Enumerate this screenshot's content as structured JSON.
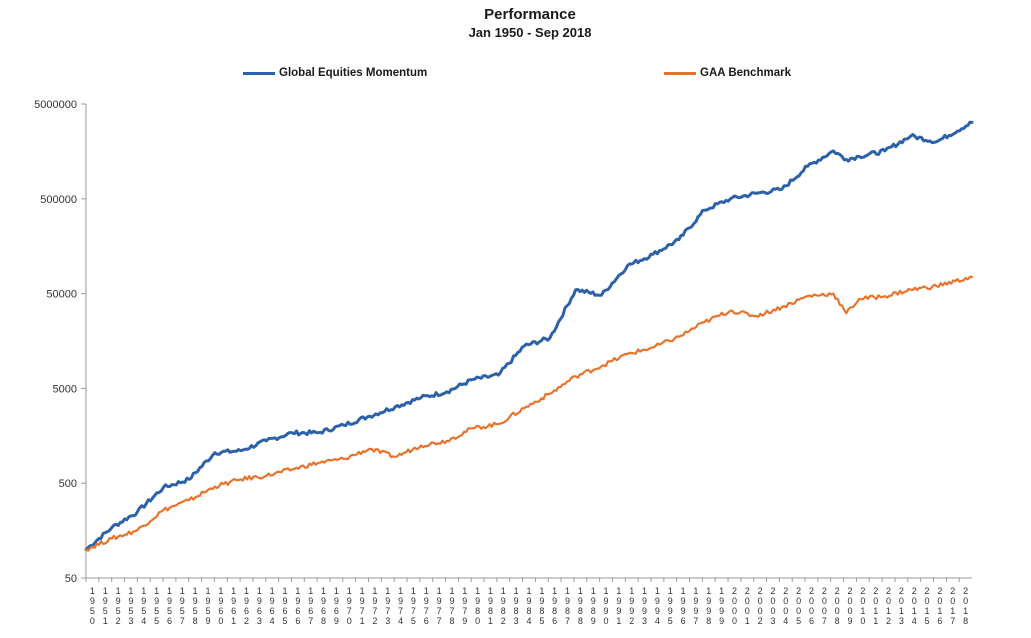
{
  "title": "Performance",
  "subtitle": "Jan 1950 - Sep 2018",
  "colors": {
    "series1": "#2d62a8",
    "series2": "#e8732a",
    "axis": "#9a9a9a"
  },
  "chart_data": {
    "type": "line",
    "title": "Performance",
    "subtitle": "Jan 1950 - Sep 2018",
    "y_scale": "log",
    "ylim": [
      50,
      5000000
    ],
    "y_ticks": [
      "50",
      "500",
      "5000",
      "50000",
      "500000",
      "5000000"
    ],
    "legend_position": "top",
    "grid": false,
    "x": [
      1950,
      1952,
      1954,
      1956,
      1958,
      1960,
      1962,
      1964,
      1966,
      1968,
      1970,
      1972,
      1974,
      1976,
      1978,
      1980,
      1982,
      1984,
      1986,
      1988,
      1990,
      1992,
      1994,
      1996,
      1998,
      2000,
      2002,
      2004,
      2006,
      2008,
      2009,
      2010,
      2012,
      2014,
      2016,
      2018.75
    ],
    "x_tick_years": [
      "1950",
      "1951",
      "1952",
      "1953",
      "1954",
      "1955",
      "1956",
      "1957",
      "1958",
      "1959",
      "1960",
      "1961",
      "1962",
      "1963",
      "1964",
      "1965",
      "1966",
      "1967",
      "1968",
      "1969",
      "1970",
      "1971",
      "1972",
      "1973",
      "1974",
      "1975",
      "1976",
      "1977",
      "1978",
      "1979",
      "1980",
      "1981",
      "1982",
      "1983",
      "1984",
      "1985",
      "1986",
      "1987",
      "1988",
      "1989",
      "1990",
      "1991",
      "1992",
      "1993",
      "1994",
      "1995",
      "1996",
      "1997",
      "1998",
      "1999",
      "2000",
      "2001",
      "2002",
      "2003",
      "2004",
      "2005",
      "2006",
      "2007",
      "2008",
      "2009",
      "2010",
      "2011",
      "2012",
      "2013",
      "2014",
      "2015",
      "2016",
      "2017",
      "2018"
    ],
    "series": [
      {
        "name": "Global Equities Momentum",
        "values": [
          100,
          170,
          250,
          450,
          550,
          1050,
          1100,
          1400,
          1700,
          1700,
          2050,
          2550,
          3200,
          4000,
          4600,
          6200,
          6900,
          14000,
          17000,
          55000,
          48000,
          98000,
          130000,
          185000,
          380000,
          500000,
          570000,
          630000,
          1100000,
          1600000,
          1300000,
          1400000,
          1600000,
          2300000,
          2000000,
          3200000
        ]
      },
      {
        "name": "GAA Benchmark",
        "values": [
          100,
          130,
          160,
          260,
          330,
          460,
          550,
          600,
          700,
          820,
          900,
          1150,
          950,
          1250,
          1400,
          1900,
          2100,
          3100,
          4400,
          6700,
          8600,
          11500,
          13500,
          17500,
          25000,
          33000,
          29000,
          36000,
          47000,
          50000,
          31000,
          44000,
          47000,
          55000,
          60000,
          75000
        ]
      }
    ]
  },
  "legend": {
    "items": [
      "Global Equities Momentum",
      "GAA Benchmark"
    ]
  }
}
